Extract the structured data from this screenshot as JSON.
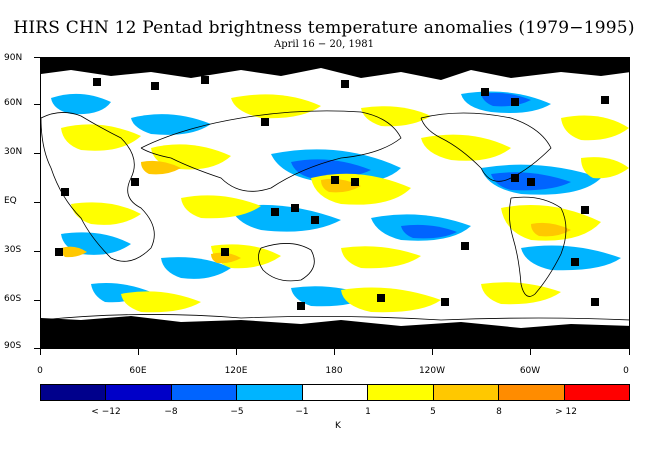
{
  "title": "HIRS CHN 12 Pentad brightness temperature anomalies (1979−1995)",
  "subtitle": "April 16 − 20, 1981",
  "y_axis": [
    "90N",
    "60N",
    "30N",
    "EQ",
    "30S",
    "60S",
    "90S"
  ],
  "x_axis": [
    "0",
    "60E",
    "120E",
    "180",
    "120W",
    "60W",
    "0"
  ],
  "colorbar": {
    "colors": [
      "#00008c",
      "#0000c8",
      "#0064ff",
      "#00b4ff",
      "#ffffff",
      "#ffff00",
      "#ffc800",
      "#ff8c00",
      "#ff0000"
    ],
    "labels": [
      "< −12",
      "−8",
      "−5",
      "−1",
      "1",
      "5",
      "8",
      "> 12"
    ],
    "unit": "K"
  }
}
